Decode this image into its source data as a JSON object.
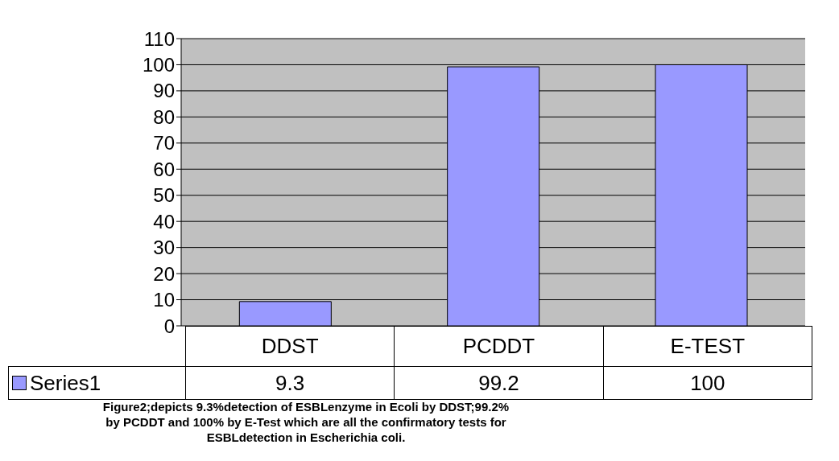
{
  "chart_data": {
    "type": "bar",
    "categories": [
      "DDST",
      "PCDDT",
      "E-TEST"
    ],
    "series": [
      {
        "name": "Series1",
        "color": "#9999ff",
        "values": [
          9.3,
          99.2,
          100
        ]
      }
    ],
    "ylim": [
      0,
      110
    ],
    "yticks": [
      0,
      10,
      20,
      30,
      40,
      50,
      60,
      70,
      80,
      90,
      100,
      110
    ],
    "grid": "y",
    "legend": "bottom",
    "data_labels": true,
    "annotations": [
      "Figure2;depicts 9.3%detection of ESBLenzyme in Ecoli by DDST;99.2%\n by PCDDT and 100% by E-Test which are all the confirmatory tests for\n ESBLdetection in Escherichia coli."
    ]
  }
}
